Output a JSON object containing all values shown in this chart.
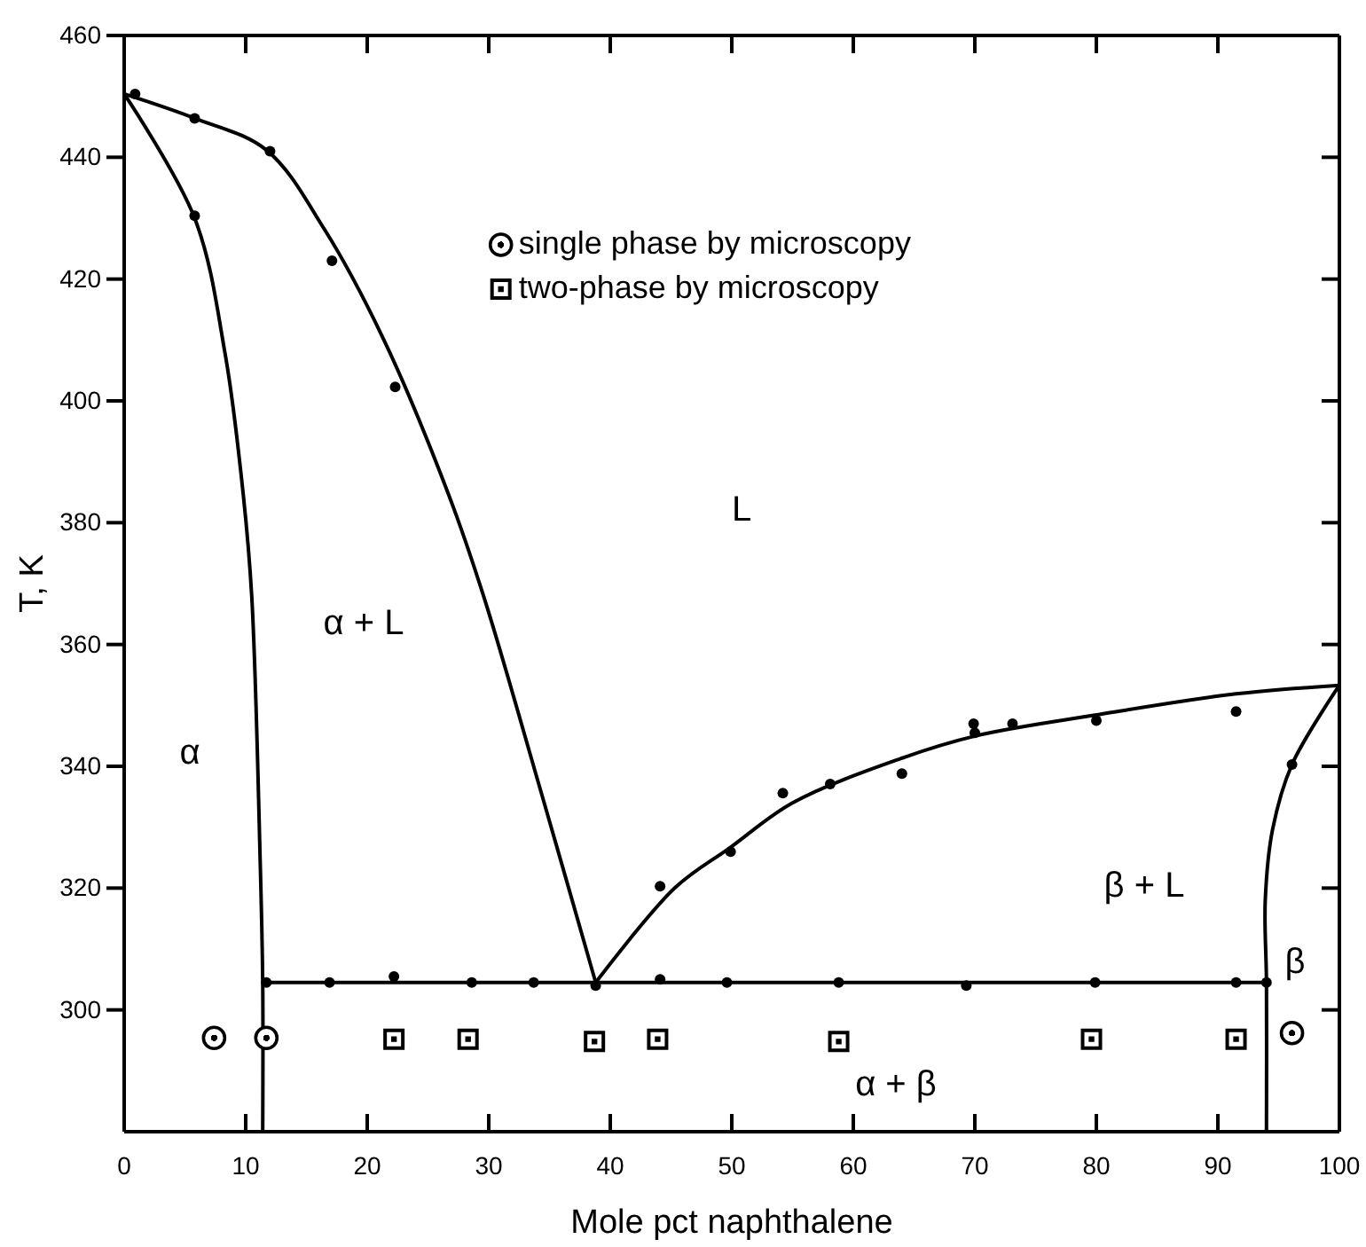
{
  "chart_data": {
    "type": "scatter",
    "xlabel": "Mole pct naphthalene",
    "ylabel": "T, K",
    "xlim": [
      0,
      100
    ],
    "ylim": [
      280,
      460
    ],
    "xticks": [
      0,
      10,
      20,
      30,
      40,
      50,
      60,
      70,
      80,
      90,
      100
    ],
    "yticks": [
      300,
      320,
      340,
      360,
      380,
      400,
      420,
      440,
      460
    ],
    "legend": "top",
    "grid": false,
    "series": [
      {
        "type": "line",
        "marker": "none",
        "color": "#000000",
        "x": [
          0,
          5.8,
          11.7,
          16.5,
          21.4,
          26.7,
          29.6,
          34.2,
          38.8
        ],
        "values": [
          450.4,
          446.4,
          441.2,
          428.1,
          409.9,
          384.6,
          367.8,
          336.5,
          304.5
        ]
      },
      {
        "type": "line",
        "marker": "none",
        "color": "#000000",
        "x": [
          0,
          5.8,
          8.3,
          9.8,
          10.5,
          11.2,
          11.4,
          11.4
        ],
        "values": [
          450.4,
          430,
          407.8,
          384.6,
          367.8,
          323.8,
          304.5,
          280
        ]
      },
      {
        "type": "line",
        "marker": "none",
        "color": "#000000",
        "x": [
          11.4,
          94
        ],
        "values": [
          304.5,
          304.5
        ]
      },
      {
        "type": "line",
        "marker": "none",
        "color": "#000000",
        "x": [
          38.8,
          45.3,
          49.9,
          55,
          63.8,
          70.1,
          79.9,
          91.5,
          100
        ],
        "values": [
          304.5,
          320,
          326.7,
          334,
          341.2,
          345,
          348.4,
          351.9,
          353.3
        ]
      },
      {
        "type": "line",
        "marker": "none",
        "color": "#000000",
        "x": [
          100,
          96.1,
          94.5,
          93.9,
          94,
          94
        ],
        "values": [
          353.3,
          340.3,
          329.6,
          318,
          304.5,
          280
        ]
      },
      {
        "marker": "circle",
        "color": "#000000",
        "x": [
          0.9,
          5.8,
          12,
          17.1,
          22.3,
          5.8,
          11.7,
          16.9,
          22.2,
          28.6,
          33.7,
          38.8,
          44.1,
          49.6,
          58.8,
          69.3,
          79.9,
          91.5,
          94,
          44.1,
          49.9,
          54.2,
          58.1,
          64,
          69.9,
          70,
          73.1,
          80,
          91.5,
          96.1
        ],
        "values": [
          450.4,
          446.4,
          441,
          423,
          402.3,
          430.4,
          304.5,
          304.5,
          305.5,
          304.5,
          304.5,
          304,
          305,
          304.5,
          304.5,
          304,
          304.5,
          304.5,
          304.5,
          320.3,
          326,
          335.6,
          337.1,
          338.8,
          347,
          345.5,
          347,
          347.5,
          349,
          340.3
        ]
      },
      {
        "marker": "circle",
        "name": "single phase by microscopy",
        "color": "#000000",
        "x": [
          7.4,
          11.7,
          96.1
        ],
        "values": [
          295.4,
          295.4,
          296.2
        ]
      },
      {
        "marker": "square",
        "name": "two-phase by microscopy",
        "color": "#000000",
        "x": [
          22.2,
          28.3,
          38.7,
          43.9,
          58.8,
          79.6,
          91.5
        ],
        "values": [
          295.2,
          295.2,
          294.8,
          295.2,
          294.8,
          295.2,
          295.2
        ]
      }
    ],
    "annotations": [
      "α",
      "α + L",
      "L",
      "β + L",
      "β",
      "α + β"
    ]
  }
}
